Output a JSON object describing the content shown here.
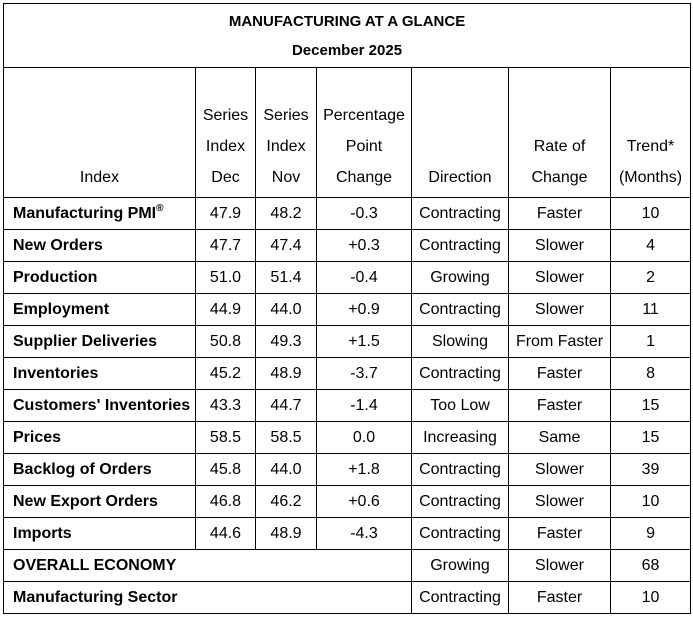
{
  "title": "MANUFACTURING AT A GLANCE",
  "subtitle": "December 2025",
  "headers": {
    "index": [
      "Index"
    ],
    "dec": [
      "Series",
      "Index",
      "Dec"
    ],
    "nov": [
      "Series",
      "Index",
      "Nov"
    ],
    "change": [
      "Percentage",
      "Point",
      "Change"
    ],
    "direction": [
      "Direction"
    ],
    "rate": [
      "Rate of",
      "Change"
    ],
    "trend": [
      "Trend*",
      "(Months)"
    ]
  },
  "rows": [
    {
      "name": "Manufacturing PMI",
      "sup": "®",
      "dec": "47.9",
      "nov": "48.2",
      "change": "-0.3",
      "direction": "Contracting",
      "rate": "Faster",
      "trend": "10"
    },
    {
      "name": "New Orders",
      "dec": "47.7",
      "nov": "47.4",
      "change": "+0.3",
      "direction": "Contracting",
      "rate": "Slower",
      "trend": "4"
    },
    {
      "name": "Production",
      "dec": "51.0",
      "nov": "51.4",
      "change": "-0.4",
      "direction": "Growing",
      "rate": "Slower",
      "trend": "2"
    },
    {
      "name": "Employment",
      "dec": "44.9",
      "nov": "44.0",
      "change": "+0.9",
      "direction": "Contracting",
      "rate": "Slower",
      "trend": "11"
    },
    {
      "name": "Supplier Deliveries",
      "dec": "50.8",
      "nov": "49.3",
      "change": "+1.5",
      "direction": "Slowing",
      "rate": "From Faster",
      "trend": "1"
    },
    {
      "name": "Inventories",
      "dec": "45.2",
      "nov": "48.9",
      "change": "-3.7",
      "direction": "Contracting",
      "rate": "Faster",
      "trend": "8"
    },
    {
      "name": "Customers' Inventories",
      "dec": "43.3",
      "nov": "44.7",
      "change": "-1.4",
      "direction": "Too Low",
      "rate": "Faster",
      "trend": "15"
    },
    {
      "name": "Prices",
      "dec": "58.5",
      "nov": "58.5",
      "change": "0.0",
      "direction": "Increasing",
      "rate": "Same",
      "trend": "15"
    },
    {
      "name": "Backlog of Orders",
      "dec": "45.8",
      "nov": "44.0",
      "change": "+1.8",
      "direction": "Contracting",
      "rate": "Slower",
      "trend": "39"
    },
    {
      "name": "New Export Orders",
      "dec": "46.8",
      "nov": "46.2",
      "change": "+0.6",
      "direction": "Contracting",
      "rate": "Slower",
      "trend": "10"
    },
    {
      "name": "Imports",
      "dec": "44.6",
      "nov": "48.9",
      "change": "-4.3",
      "direction": "Contracting",
      "rate": "Faster",
      "trend": "9"
    }
  ],
  "summary_rows": [
    {
      "name": "OVERALL ECONOMY",
      "direction": "Growing",
      "rate": "Slower",
      "trend": "68"
    },
    {
      "name": "Manufacturing Sector",
      "direction": "Contracting",
      "rate": "Faster",
      "trend": "10"
    }
  ]
}
